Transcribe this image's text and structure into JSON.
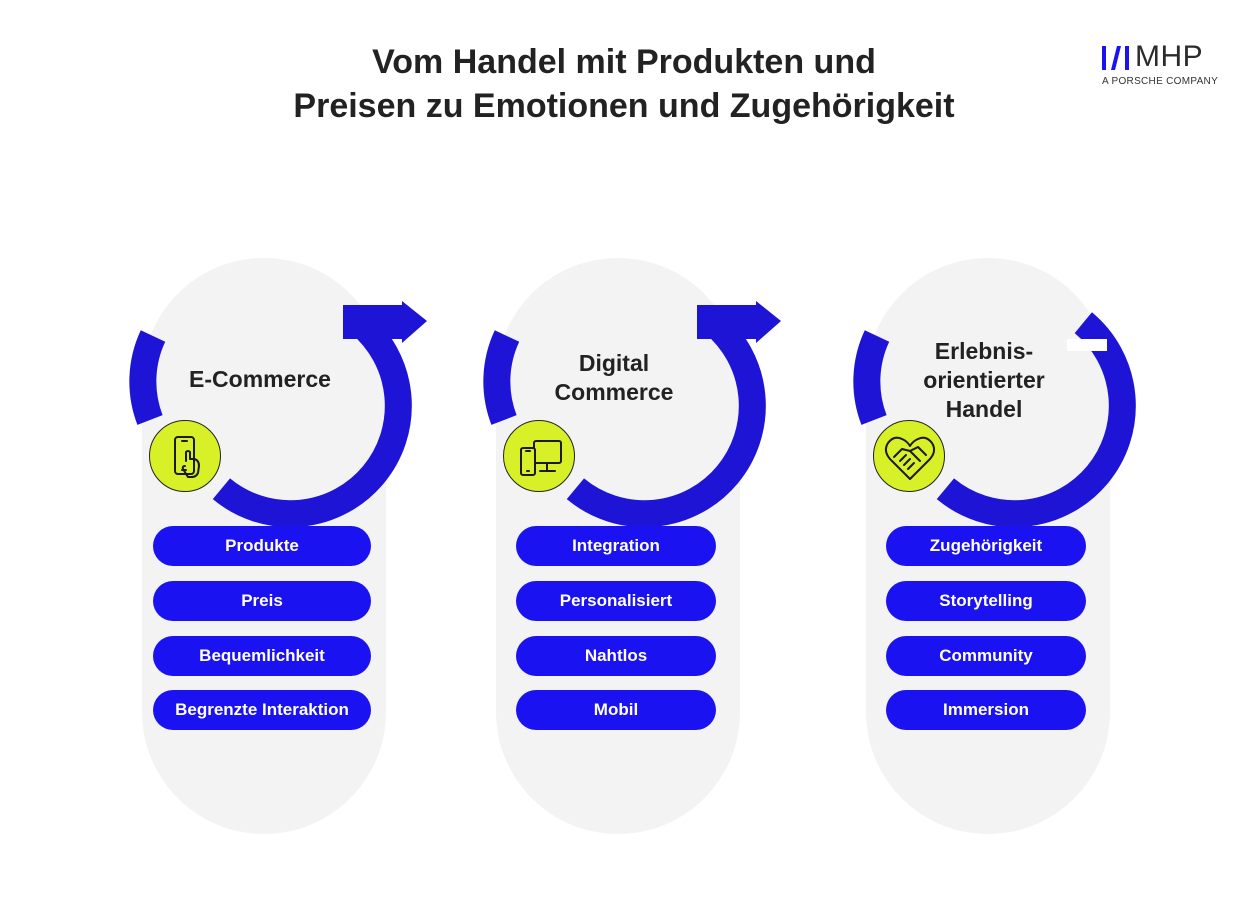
{
  "title": {
    "line1": "Vom Handel mit Produkten und",
    "line2": "Preisen zu Emotionen und Zugehörigkeit"
  },
  "logo": {
    "name": "MHP",
    "subtitle": "A PORSCHE COMPANY"
  },
  "colors": {
    "ring_blue": "#1e14d6",
    "tag_blue": "#1a12f0",
    "icon_yellow": "#d8f028",
    "pill_gray": "#f3f3f4",
    "text_dark": "#222222"
  },
  "stages": [
    {
      "label_lines": [
        "E-Commerce"
      ],
      "icon": "smartphone-touch-icon",
      "tags": [
        "Produkte",
        "Preis",
        "Bequemlichkeit",
        "Begrenzte Interaktion"
      ]
    },
    {
      "label_lines": [
        "Digital",
        "Commerce"
      ],
      "icon": "devices-icon",
      "tags": [
        "Integration",
        "Personalisiert",
        "Nahtlos",
        "Mobil"
      ]
    },
    {
      "label_lines": [
        "Erlebnis-",
        "orientierter",
        "Handel"
      ],
      "icon": "handshake-heart-icon",
      "tags": [
        "Zugehörigkeit",
        "Storytelling",
        "Community",
        "Immersion"
      ]
    }
  ]
}
